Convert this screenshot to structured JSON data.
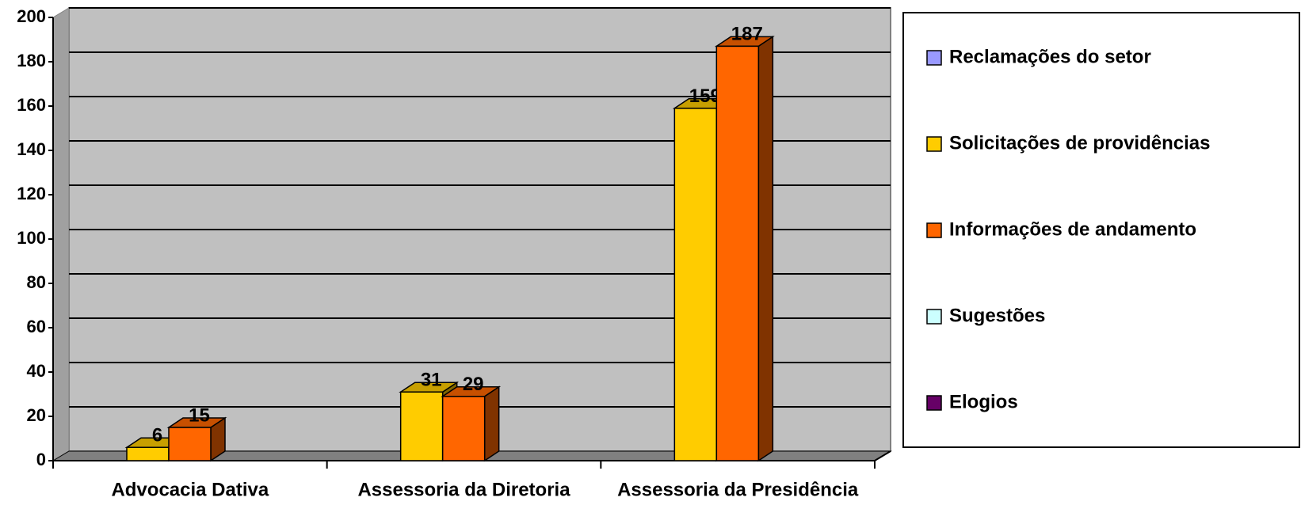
{
  "chart_data": {
    "type": "bar3d",
    "categories": [
      "Advocacia Dativa",
      "Assessoria da Diretoria",
      "Assessoria da Presidência"
    ],
    "series": [
      {
        "name": "Reclamações do setor",
        "color": "#9999ff",
        "values": [
          null,
          null,
          null
        ]
      },
      {
        "name": "Solicitações de providências",
        "color": "#ffcc00",
        "values": [
          6,
          31,
          159
        ]
      },
      {
        "name": "Informações de andamento",
        "color": "#ff6600",
        "values": [
          15,
          29,
          187
        ]
      },
      {
        "name": "Sugestões",
        "color": "#ccffff",
        "values": [
          null,
          null,
          null
        ]
      },
      {
        "name": "Elogios",
        "color": "#660066",
        "values": [
          null,
          null,
          null
        ]
      }
    ],
    "ylim": [
      0,
      200
    ],
    "yticks": [
      0,
      20,
      40,
      60,
      80,
      100,
      120,
      140,
      160,
      180,
      200
    ],
    "grid": true,
    "legend": "right"
  }
}
